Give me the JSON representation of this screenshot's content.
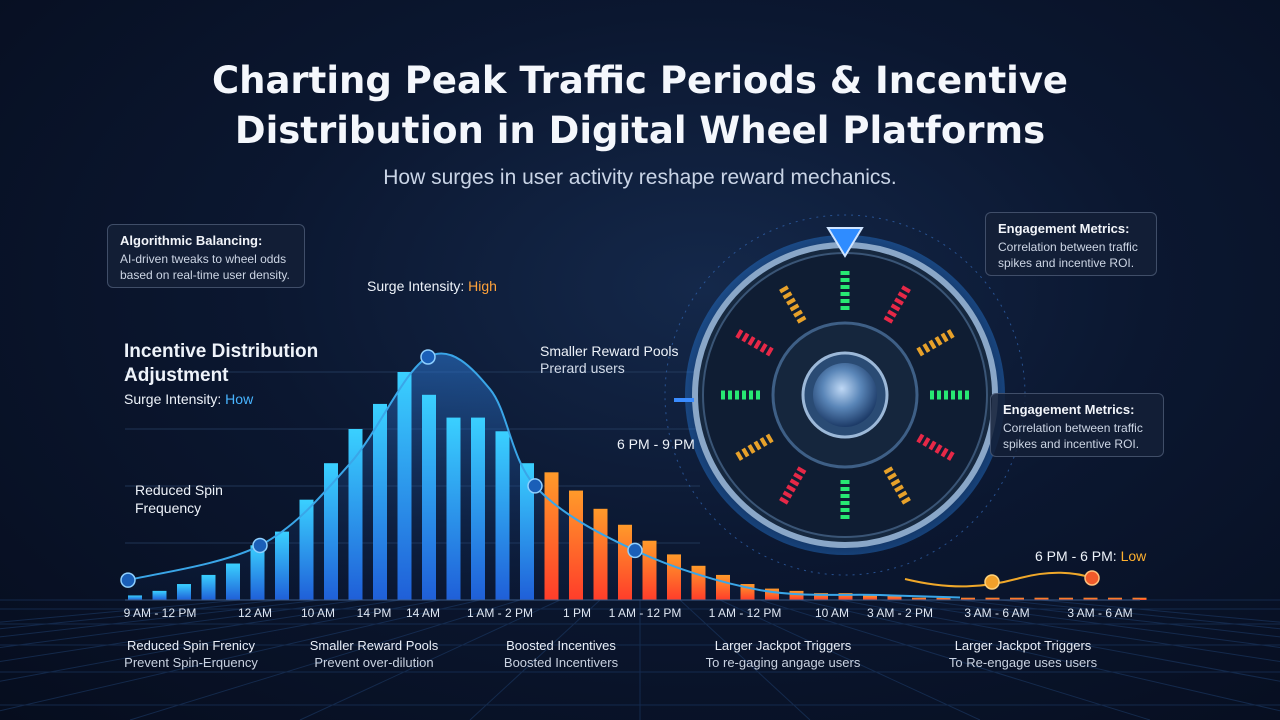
{
  "header": {
    "title_line1": "Charting Peak Traffic Periods & Incentive",
    "title_line2": "Distribution in Digital Wheel Platforms",
    "subtitle": "How surges in user activity reshape reward mechanics."
  },
  "cards": {
    "algo": {
      "title": "Algorithmic Balancing:",
      "body": "AI-driven tweaks to wheel odds based on real-time user density."
    },
    "engage_top": {
      "title": "Engagement Metrics:",
      "body": "Correlation between traffic spikes and incentive ROI."
    },
    "engage_mid": {
      "title": "Engagement Metrics:",
      "body": "Correlation between traffic spikes and incentive ROI."
    }
  },
  "labels": {
    "incentive_title": "Incentive Distribution Adjustment",
    "surge_low_prefix": "Surge Intensity: ",
    "surge_low_value": "How",
    "surge_high_prefix": "Surge Intensity: ",
    "surge_high_value": "High",
    "reduced_spin": "Reduced Spin Frequency",
    "smaller_pools": "Smaller Reward Pools",
    "prerard": "Prerard users",
    "six_nine": "6 PM - 9 PM",
    "six_six_prefix": "6 PM - 6 PM: ",
    "six_six_value": "Low"
  },
  "bottom": [
    {
      "title": "Reduced Spin Frenicy",
      "sub": "Prevent Spin-Erquency"
    },
    {
      "title": "Smaller Reward Pools",
      "sub": "Prevent over-dilution"
    },
    {
      "title": "Boosted Incentives",
      "sub": "Boosted Incentivers"
    },
    {
      "title": "Larger Jackpot Triggers",
      "sub": "To re-gaging angage users"
    },
    {
      "title": "Larger Jackpot Triggers",
      "sub": "To Re-engage uses users"
    }
  ],
  "colors": {
    "bar_blue": "#2f7fe8",
    "bar_orange": "#ff6a2a",
    "curve": "#3aa6e8",
    "low_line": "#f0a82a"
  },
  "chart_data": {
    "type": "bar",
    "title": "",
    "xlabel": "",
    "ylabel": "",
    "ylim": [
      0,
      100
    ],
    "grid": true,
    "x_tick_labels": [
      "9 AM - 12 PM",
      "12 AM",
      "10 AM",
      "14 PM",
      "14 AM",
      "1 AM - 2 PM",
      "1 PM",
      "1 AM - 12 PM",
      "1 AM - 12 PM",
      "10 AM",
      "3 AM - 2 PM",
      "3 AM - 6 AM",
      "3 AM - 6 AM"
    ],
    "series": [
      {
        "values": [
          2,
          4,
          7,
          11,
          16,
          24,
          30,
          44,
          60,
          75,
          86,
          100,
          90,
          80,
          80,
          74,
          60,
          56,
          48,
          40,
          33,
          26,
          20,
          15,
          11,
          7,
          5,
          4,
          3,
          3,
          2,
          2,
          1,
          1,
          1,
          1,
          1,
          1,
          1,
          1,
          1,
          1
        ]
      }
    ],
    "orange_from_index": 17,
    "surge_curve": [
      8,
      22,
      55,
      98,
      85,
      46,
      20,
      4,
      2,
      1
    ]
  }
}
